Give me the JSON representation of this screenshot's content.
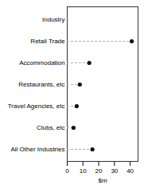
{
  "chart_data": {
    "type": "lollipop",
    "orientation": "horizontal",
    "categories": [
      "Industry",
      "Retail Trade",
      "Accommodation",
      "Restaurants, etc",
      "Travel Agencies, etc",
      "Clubs, etc",
      "All Other Industries"
    ],
    "values": [
      null,
      41,
      14,
      8,
      6,
      4,
      16
    ],
    "xlabel": "$m",
    "xlim": [
      0,
      45
    ],
    "xticks": [
      0,
      10,
      20,
      30,
      40
    ],
    "color": "#111111",
    "line_style": "dashed",
    "marker": "circle"
  }
}
